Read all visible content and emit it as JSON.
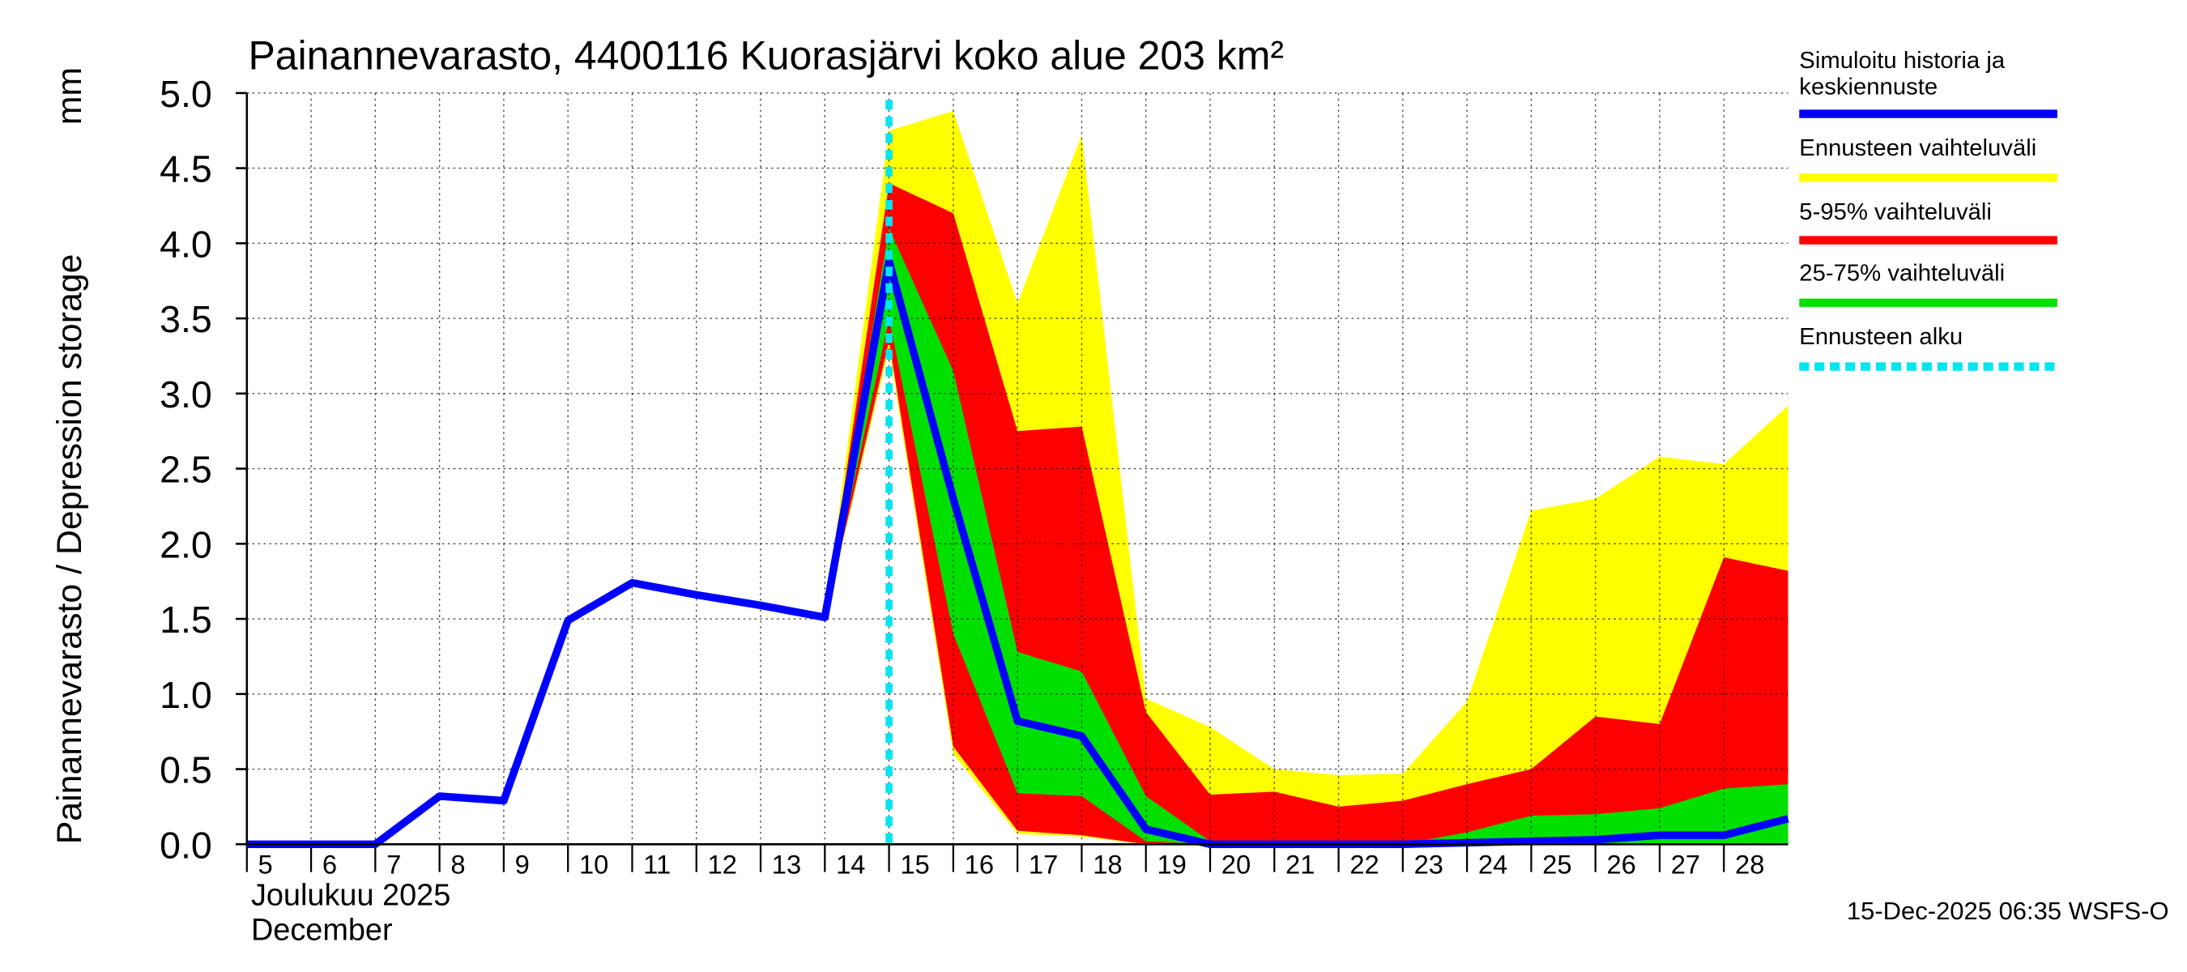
{
  "chart_data": {
    "type": "band-line",
    "title": "Painannevarasto, 4400116 Kuorasjärvi koko alue 203 km²",
    "ylabel": "Painannevarasto / Depression storage",
    "yunit": "mm",
    "xlabel_fi": "Joulukuu  2025",
    "xlabel_en": "December",
    "footer": "15-Dec-2025 06:35 WSFS-O",
    "xlim": [
      5,
      29
    ],
    "xticks": [
      5,
      6,
      7,
      8,
      9,
      10,
      11,
      12,
      13,
      14,
      15,
      16,
      17,
      18,
      19,
      20,
      21,
      22,
      23,
      24,
      25,
      26,
      27,
      28
    ],
    "ylim": [
      0,
      5
    ],
    "yticks": [
      {
        "value": 0,
        "label": "0.0"
      },
      {
        "value": 0.5,
        "label": "0.5"
      },
      {
        "value": 1,
        "label": "1.0"
      },
      {
        "value": 1.5,
        "label": "1.5"
      },
      {
        "value": 2,
        "label": "2.0"
      },
      {
        "value": 2.5,
        "label": "2.5"
      },
      {
        "value": 3,
        "label": "3.0"
      },
      {
        "value": 3.5,
        "label": "3.5"
      },
      {
        "value": 4,
        "label": "4.0"
      },
      {
        "value": 4.5,
        "label": "4.5"
      },
      {
        "value": 5,
        "label": "5.0"
      }
    ],
    "grid": true,
    "forecast_start": 15,
    "forecast_name": "Ennusteen alku",
    "forecast_color": "#00e5ee",
    "bands": [
      {
        "name": "Ennusteen vaihteluväli",
        "color": "#ffff00",
        "x": [
          14,
          15,
          16,
          17,
          18,
          19,
          20,
          21,
          22,
          23,
          24,
          25,
          26,
          27,
          28,
          29
        ],
        "lower": [
          1.51,
          3.3,
          0.6,
          0.07,
          0.05,
          0,
          0,
          0,
          0,
          0,
          0,
          0,
          0,
          0,
          0,
          0
        ],
        "upper": [
          1.51,
          4.75,
          4.88,
          3.6,
          4.72,
          0.97,
          0.78,
          0.5,
          0.46,
          0.47,
          0.95,
          2.22,
          2.3,
          2.58,
          2.53,
          2.92
        ]
      },
      {
        "name": "5-95% vaihteluväli",
        "color": "#ff0000",
        "x": [
          14,
          15,
          16,
          17,
          18,
          19,
          20,
          21,
          22,
          23,
          24,
          25,
          26,
          27,
          28,
          29
        ],
        "lower": [
          1.51,
          3.35,
          0.65,
          0.09,
          0.06,
          0,
          0,
          0,
          0,
          0,
          0,
          0,
          0,
          0,
          0,
          0
        ],
        "upper": [
          1.51,
          4.4,
          4.2,
          2.75,
          2.78,
          0.88,
          0.33,
          0.35,
          0.25,
          0.29,
          0.4,
          0.5,
          0.85,
          0.8,
          1.91,
          1.82
        ]
      },
      {
        "name": "25-75% vaihteluväli",
        "color": "#00e000",
        "x": [
          14,
          15,
          16,
          17,
          18,
          19,
          20,
          21,
          22,
          23,
          24,
          25,
          26,
          27,
          28,
          29
        ],
        "lower": [
          1.51,
          3.5,
          1.4,
          0.34,
          0.32,
          0.02,
          0,
          0,
          0,
          0,
          0,
          0,
          0,
          0,
          0,
          0
        ],
        "upper": [
          1.51,
          4.1,
          3.15,
          1.28,
          1.15,
          0.32,
          0.02,
          0,
          0,
          0,
          0.08,
          0.19,
          0.2,
          0.24,
          0.37,
          0.4
        ]
      }
    ],
    "series": [
      {
        "name": "Simuloitu historia ja keskiennuste",
        "color": "#0000ff",
        "x": [
          5,
          6,
          7,
          8,
          9,
          10,
          11,
          12,
          13,
          14,
          15,
          16,
          17,
          18,
          19,
          20,
          21,
          22,
          23,
          24,
          25,
          26,
          27,
          28,
          29
        ],
        "values": [
          0,
          0,
          0,
          0.32,
          0.29,
          1.49,
          1.74,
          1.66,
          1.59,
          1.51,
          3.88,
          2.3,
          0.82,
          0.72,
          0.1,
          0,
          0,
          0,
          0,
          0.01,
          0.02,
          0.03,
          0.06,
          0.06,
          0.17
        ]
      }
    ]
  }
}
